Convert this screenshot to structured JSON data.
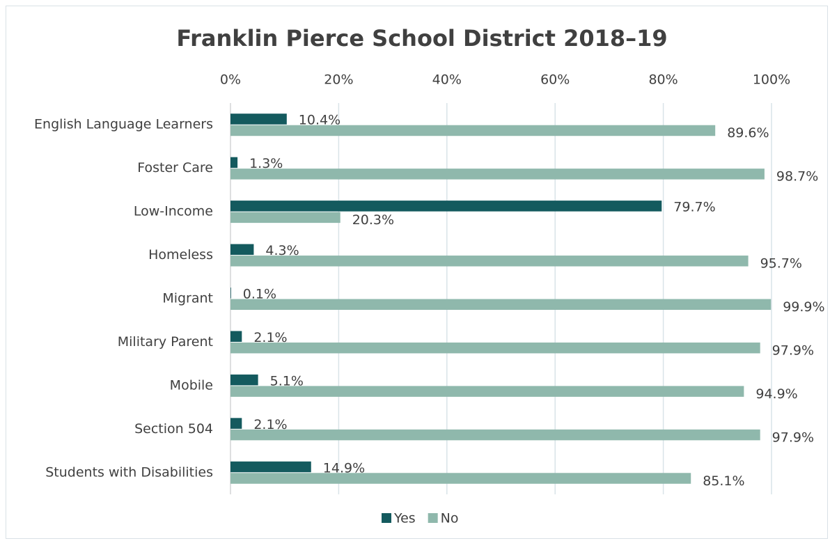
{
  "chart_data": {
    "type": "hbar",
    "title": "Franklin Pierce School District 2018–19",
    "categories": [
      "English Language Learners",
      "Foster Care",
      "Low-Income",
      "Homeless",
      "Migrant",
      "Military Parent",
      "Mobile",
      "Section 504",
      "Students with Disabilities"
    ],
    "series": [
      {
        "name": "Yes",
        "color": "#145a5e",
        "values": [
          10.4,
          1.3,
          79.7,
          4.3,
          0.1,
          2.1,
          5.1,
          2.1,
          14.9
        ],
        "value_labels": [
          "10.4%",
          "1.3%",
          "79.7%",
          "4.3%",
          "0.1%",
          "2.1%",
          "5.1%",
          "2.1%",
          "14.9%"
        ]
      },
      {
        "name": "No",
        "color": "#8fb8ac",
        "values": [
          89.6,
          98.7,
          20.3,
          95.7,
          99.9,
          97.9,
          94.9,
          97.9,
          85.1
        ],
        "value_labels": [
          "89.6%",
          "98.7%",
          "20.3%",
          "95.7%",
          "99.9%",
          "97.9%",
          "94.9%",
          "97.9%",
          "85.1%"
        ]
      }
    ],
    "xlim": [
      0,
      100
    ],
    "xticks": [
      {
        "value": 0,
        "label": "0%"
      },
      {
        "value": 20,
        "label": "20%"
      },
      {
        "value": 40,
        "label": "40%"
      },
      {
        "value": 60,
        "label": "60%"
      },
      {
        "value": 80,
        "label": "80%"
      },
      {
        "value": 100,
        "label": "100%"
      }
    ],
    "grid": true,
    "legend": "bottom"
  }
}
